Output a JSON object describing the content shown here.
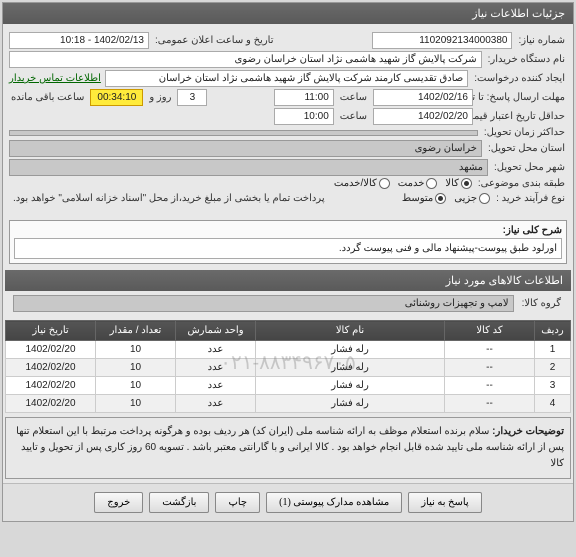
{
  "panel_title": "جزئیات اطلاعات نیاز",
  "labels": {
    "need_number": "شماره نیاز:",
    "announce_datetime": "تاریخ و ساعت اعلان عمومی:",
    "buyer_device": "نام دستگاه خریدار:",
    "request_creator": "ایجاد کننده درخواست:",
    "response_from": "مهلت ارسال پاسخ: تا تاریخ:",
    "min_validity": "حداقل تاریخ اعتبار قیمت: تا تاریخ:",
    "delivery_max": "حداکثر زمان تحویل:",
    "delivery_province": "استان محل تحویل:",
    "delivery_city": "شهر محل تحویل:",
    "category": "طبقه بندی موضوعی:",
    "process_type": "نوع فرآیند خرید :",
    "hour": "ساعت",
    "day_and": "روز و",
    "remaining": "ساعت باقی مانده",
    "need_desc": "شرح کلی نیاز:",
    "goods_group": "گروه کالا:",
    "buyer_notes_label": "توضیحات خریدار:"
  },
  "values": {
    "need_number": "1102092134000380",
    "announce_datetime": "1402/02/13 - 10:18",
    "buyer_device": "شرکت پالایش گاز شهید هاشمی نژاد   استان خراسان رضوی",
    "request_creator": "صادق تقدیسی کارمند شرکت پالایش گاز شهید هاشمی نژاد   استان خراسان",
    "response_date": "1402/02/16",
    "response_time": "11:00",
    "response_days": "3",
    "timer": "00:34:10",
    "validity_date": "1402/02/20",
    "validity_time": "10:00",
    "delivery_province": "خراسان رضوی",
    "delivery_city": "مشهد",
    "contact_link": "اطلاعات تماس خریدار",
    "payment_note": "پرداخت تمام یا بخشی از مبلغ خرید،از محل \"اسناد خزانه اسلامی\" خواهد بود.",
    "need_desc": "اورلود طبق پیوست-پیشنهاد مالی و فنی پیوست گردد.",
    "goods_group": "لامپ و تجهیزات روشنائی",
    "buyer_notes": "سلام  برنده استعلام موظف به ارائه شناسه ملی (ایران کد) هر ردیف بوده و هرگونه پرداخت مرتبط با این استعلام تنها پس از ارائه شناسه ملی تایید شده قابل انجام خواهد بود . کالا ایرانی و با گارانتی معتبر باشد . تسویه 60 روز کاری پس از تحویل و تایید کالا"
  },
  "category_radios": {
    "goods": "کالا",
    "service": "خدمت",
    "both": "کالا/خدمت",
    "selected": "goods"
  },
  "process_radios": {
    "low": "جزیی",
    "medium": "متوسط",
    "selected": "medium"
  },
  "goods_section_title": "اطلاعات کالاهای مورد نیاز",
  "table": {
    "columns": [
      "ردیف",
      "کد کالا",
      "نام کالا",
      "واحد شمارش",
      "تعداد / مقدار",
      "تاریخ نیاز"
    ],
    "rows": [
      [
        "1",
        "--",
        "رله فشار",
        "عدد",
        "10",
        "1402/02/20"
      ],
      [
        "2",
        "--",
        "رله فشار",
        "عدد",
        "10",
        "1402/02/20"
      ],
      [
        "3",
        "--",
        "رله فشار",
        "عدد",
        "10",
        "1402/02/20"
      ],
      [
        "4",
        "--",
        "رله فشار",
        "عدد",
        "10",
        "1402/02/20"
      ]
    ],
    "col_widths": [
      "36px",
      "90px",
      "auto",
      "80px",
      "80px",
      "90px"
    ],
    "watermark": "۰۲۱-۸۸۳۴۹۶۷۰۵"
  },
  "buttons": {
    "respond": "پاسخ به نیاز",
    "attachments": "مشاهده مدارک پیوستی (1)",
    "print": "چاپ",
    "back": "بازگشت",
    "exit": "خروج"
  },
  "colors": {
    "header_bg": "#5a5a5a",
    "timer_bg": "#ffeb3b",
    "link": "#006600"
  }
}
